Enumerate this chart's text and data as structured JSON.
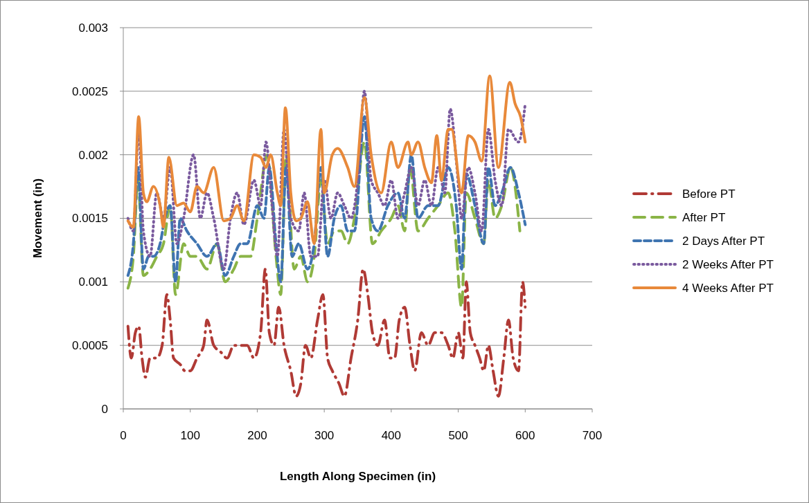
{
  "chart_data": {
    "type": "line",
    "xlabel": "Length Along Specimen (in)",
    "ylabel": "Movement (in)",
    "xlim": [
      0,
      700
    ],
    "xticks": [
      0,
      100,
      200,
      300,
      400,
      500,
      600,
      700
    ],
    "ylim": [
      0,
      0.003
    ],
    "yticks": [
      0,
      0.0005,
      0.001,
      0.0015,
      0.002,
      0.0025,
      0.003
    ],
    "grid": "y",
    "legend": "right",
    "marker": "none",
    "series": [
      {
        "name": "Before PT",
        "color": "#b03a35",
        "line_style": "dashdot",
        "x": [
          7,
          12,
          18,
          23,
          28,
          33,
          40,
          50,
          58,
          65,
          70,
          75,
          85,
          92,
          100,
          110,
          120,
          125,
          135,
          145,
          155,
          165,
          175,
          185,
          195,
          205,
          212,
          218,
          225,
          232,
          240,
          250,
          258,
          265,
          272,
          280,
          290,
          298,
          305,
          312,
          322,
          330,
          340,
          350,
          358,
          365,
          372,
          380,
          390,
          398,
          405,
          412,
          420,
          428,
          435,
          445,
          455,
          465,
          475,
          485,
          492,
          500,
          507,
          512,
          518,
          525,
          532,
          538,
          545,
          552,
          560,
          568,
          575,
          582,
          590,
          596,
          600
        ],
        "values": [
          0.00065,
          0.0004,
          0.0006,
          0.00065,
          0.0004,
          0.00025,
          0.0004,
          0.0004,
          0.0005,
          0.0009,
          0.0007,
          0.0004,
          0.00035,
          0.0003,
          0.0003,
          0.0004,
          0.0005,
          0.0007,
          0.0005,
          0.00045,
          0.0004,
          0.0005,
          0.0005,
          0.0005,
          0.0004,
          0.0006,
          0.0011,
          0.0006,
          0.0005,
          0.0008,
          0.0005,
          0.0003,
          0.0001,
          0.0002,
          0.0005,
          0.0004,
          0.0007,
          0.0009,
          0.0004,
          0.0003,
          0.0002,
          0.0001,
          0.0004,
          0.0007,
          0.0011,
          0.0009,
          0.0006,
          0.0005,
          0.0007,
          0.0004,
          0.0004,
          0.0007,
          0.0008,
          0.0005,
          0.0003,
          0.0006,
          0.0005,
          0.0006,
          0.0006,
          0.0005,
          0.0004,
          0.0006,
          0.0004,
          0.001,
          0.0006,
          0.0005,
          0.0004,
          0.0003,
          0.0005,
          0.0003,
          0.0001,
          0.0004,
          0.0007,
          0.0004,
          0.0003,
          0.001,
          0.0008
        ]
      },
      {
        "name": "After PT",
        "color": "#8ab446",
        "line_style": "longdash",
        "x": [
          7,
          15,
          22,
          30,
          40,
          50,
          60,
          70,
          78,
          90,
          100,
          110,
          125,
          140,
          152,
          165,
          175,
          190,
          200,
          215,
          228,
          235,
          243,
          255,
          265,
          275,
          285,
          295,
          305,
          315,
          325,
          335,
          345,
          360,
          372,
          385,
          400,
          410,
          420,
          428,
          440,
          455,
          470,
          485,
          495,
          505,
          512,
          525,
          538,
          545,
          555,
          565,
          578,
          592
        ],
        "values": [
          0.00095,
          0.0012,
          0.0018,
          0.00105,
          0.0011,
          0.0012,
          0.0013,
          0.0016,
          0.0009,
          0.0013,
          0.0012,
          0.0012,
          0.0011,
          0.0013,
          0.001,
          0.0011,
          0.0012,
          0.0012,
          0.0015,
          0.002,
          0.0012,
          0.0009,
          0.002,
          0.0011,
          0.0012,
          0.001,
          0.0012,
          0.0018,
          0.0013,
          0.0014,
          0.0014,
          0.0013,
          0.0015,
          0.0021,
          0.0013,
          0.0014,
          0.0015,
          0.0016,
          0.0014,
          0.0019,
          0.0014,
          0.0015,
          0.0016,
          0.0017,
          0.0014,
          0.0008,
          0.0017,
          0.0015,
          0.0013,
          0.0018,
          0.0015,
          0.0016,
          0.0019,
          0.0014
        ]
      },
      {
        "name": "2 Days After PT",
        "color": "#3f74b1",
        "line_style": "dashed",
        "x": [
          7,
          15,
          22,
          30,
          38,
          45,
          55,
          62,
          70,
          78,
          85,
          95,
          110,
          125,
          140,
          152,
          165,
          175,
          185,
          200,
          210,
          218,
          228,
          235,
          243,
          252,
          262,
          275,
          285,
          295,
          305,
          315,
          325,
          335,
          345,
          360,
          370,
          380,
          395,
          410,
          420,
          430,
          440,
          455,
          470,
          485,
          497,
          505,
          512,
          525,
          538,
          545,
          555,
          565,
          578,
          590,
          600
        ],
        "values": [
          0.00105,
          0.0013,
          0.0019,
          0.0011,
          0.0012,
          0.0012,
          0.0013,
          0.0015,
          0.0016,
          0.001,
          0.0015,
          0.0014,
          0.0013,
          0.0012,
          0.0013,
          0.00105,
          0.0012,
          0.0013,
          0.0013,
          0.0016,
          0.0015,
          0.0019,
          0.0013,
          0.001,
          0.0019,
          0.0012,
          0.0013,
          0.0011,
          0.0013,
          0.0019,
          0.0012,
          0.0015,
          0.0016,
          0.0014,
          0.0014,
          0.0023,
          0.0015,
          0.0014,
          0.0016,
          0.0017,
          0.0015,
          0.002,
          0.0015,
          0.0016,
          0.0016,
          0.0019,
          0.0016,
          0.0011,
          0.00185,
          0.0016,
          0.0013,
          0.0019,
          0.0016,
          0.0017,
          0.0019,
          0.0017,
          0.00145
        ]
      },
      {
        "name": "2 Weeks After PT",
        "color": "#7a5a9e",
        "line_style": "dotted",
        "x": [
          7,
          15,
          23,
          30,
          40,
          50,
          60,
          70,
          80,
          90,
          105,
          115,
          125,
          135,
          150,
          160,
          170,
          180,
          195,
          205,
          213,
          222,
          230,
          240,
          250,
          262,
          270,
          280,
          290,
          300,
          310,
          320,
          330,
          340,
          350,
          360,
          370,
          380,
          390,
          400,
          410,
          420,
          430,
          440,
          450,
          460,
          470,
          480,
          488,
          498,
          505,
          515,
          525,
          535,
          545,
          555,
          565,
          575,
          590,
          600
        ],
        "values": [
          0.0015,
          0.0014,
          0.0022,
          0.0014,
          0.0012,
          0.0017,
          0.0015,
          0.0019,
          0.0013,
          0.0015,
          0.002,
          0.0015,
          0.0017,
          0.0015,
          0.0011,
          0.0015,
          0.0017,
          0.00145,
          0.0018,
          0.0016,
          0.0021,
          0.0016,
          0.0012,
          0.0022,
          0.0015,
          0.0014,
          0.0017,
          0.0012,
          0.0012,
          0.0018,
          0.0015,
          0.0017,
          0.0016,
          0.0015,
          0.0018,
          0.0025,
          0.0018,
          0.0017,
          0.0016,
          0.0018,
          0.0015,
          0.0017,
          0.0019,
          0.0016,
          0.0018,
          0.0016,
          0.0019,
          0.0017,
          0.00236,
          0.0019,
          0.0015,
          0.0019,
          0.0017,
          0.0014,
          0.0022,
          0.0018,
          0.0016,
          0.0022,
          0.0021,
          0.0024
        ]
      },
      {
        "name": "4 Weeks After PT",
        "color": "#e8893a",
        "line_style": "solid",
        "x": [
          7,
          15,
          23,
          30,
          35,
          45,
          55,
          60,
          68,
          80,
          90,
          100,
          110,
          120,
          135,
          150,
          160,
          170,
          180,
          195,
          205,
          213,
          220,
          230,
          235,
          242,
          250,
          258,
          265,
          275,
          285,
          295,
          300,
          312,
          320,
          335,
          345,
          360,
          370,
          385,
          400,
          410,
          425,
          430,
          440,
          450,
          460,
          468,
          475,
          485,
          490,
          505,
          515,
          525,
          535,
          547,
          560,
          577,
          585,
          593,
          600
        ],
        "values": [
          0.00148,
          0.00143,
          0.0023,
          0.0017,
          0.00163,
          0.00175,
          0.0016,
          0.00143,
          0.00198,
          0.0016,
          0.00162,
          0.00155,
          0.00175,
          0.0017,
          0.0019,
          0.00148,
          0.0015,
          0.0016,
          0.00148,
          0.002,
          0.00198,
          0.0019,
          0.002,
          0.0017,
          0.0016,
          0.00237,
          0.0017,
          0.00148,
          0.0015,
          0.00163,
          0.0013,
          0.0022,
          0.0017,
          0.002,
          0.00205,
          0.0019,
          0.00175,
          0.00245,
          0.002,
          0.0017,
          0.0021,
          0.0019,
          0.0021,
          0.002,
          0.0021,
          0.0019,
          0.00178,
          0.00215,
          0.0018,
          0.0022,
          0.0022,
          0.0017,
          0.00215,
          0.0021,
          0.00195,
          0.00262,
          0.0019,
          0.00257,
          0.0024,
          0.0023,
          0.0021
        ]
      }
    ]
  }
}
